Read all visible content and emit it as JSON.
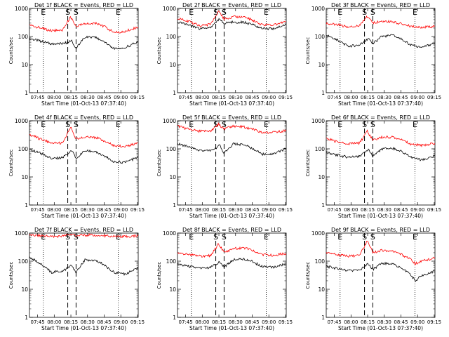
{
  "chart_data": {
    "type": "line",
    "title_suffix": "BLACK = Events, RED = LLD",
    "ylabel": "Counts/sec",
    "xlabel": "Start Time (01-Oct-13 07:37:40)",
    "x_tick_labels": [
      "07:45",
      "08:00",
      "08:15",
      "08:30",
      "08:45",
      "09:00",
      "09:15"
    ],
    "x_ticks_minutes": [
      7.33,
      22.33,
      37.33,
      52.33,
      67.33,
      82.33,
      97.33
    ],
    "xlim_minutes": [
      0,
      98
    ],
    "y_tick_labels": [
      "1",
      "10",
      "100",
      "1000"
    ],
    "ylim": [
      1,
      1000
    ],
    "y_scale": "log",
    "markers": [
      {
        "label": "E",
        "minute": 12.5,
        "style": "dotted"
      },
      {
        "label": "S",
        "minute": 34.5,
        "style": "dashed"
      },
      {
        "label": "S",
        "minute": 42.0,
        "style": "dashed"
      },
      {
        "label": "E",
        "minute": 80.0,
        "style": "dotted"
      }
    ],
    "colors": {
      "events": "#000000",
      "lld": "#ff0000"
    },
    "panels": [
      {
        "detector": "1f",
        "title": "Det 1f",
        "events": [
          {
            "x": 0,
            "y": 85
          },
          {
            "x": 10,
            "y": 68
          },
          {
            "x": 20,
            "y": 55
          },
          {
            "x": 30,
            "y": 55
          },
          {
            "x": 38,
            "y": 70
          },
          {
            "x": 42,
            "y": 38
          },
          {
            "x": 50,
            "y": 95
          },
          {
            "x": 60,
            "y": 90
          },
          {
            "x": 68,
            "y": 65
          },
          {
            "x": 76,
            "y": 38
          },
          {
            "x": 86,
            "y": 40
          },
          {
            "x": 98,
            "y": 65
          }
        ],
        "lld": [
          {
            "x": 0,
            "y": 260
          },
          {
            "x": 10,
            "y": 200
          },
          {
            "x": 20,
            "y": 160
          },
          {
            "x": 30,
            "y": 170
          },
          {
            "x": 37,
            "y": 500
          },
          {
            "x": 42,
            "y": 230
          },
          {
            "x": 50,
            "y": 280
          },
          {
            "x": 60,
            "y": 290
          },
          {
            "x": 68,
            "y": 220
          },
          {
            "x": 76,
            "y": 140
          },
          {
            "x": 86,
            "y": 150
          },
          {
            "x": 98,
            "y": 220
          }
        ]
      },
      {
        "detector": "2f",
        "title": "Det 2f",
        "events": [
          {
            "x": 0,
            "y": 320
          },
          {
            "x": 10,
            "y": 260
          },
          {
            "x": 20,
            "y": 190
          },
          {
            "x": 30,
            "y": 210
          },
          {
            "x": 38,
            "y": 420
          },
          {
            "x": 42,
            "y": 300
          },
          {
            "x": 50,
            "y": 330
          },
          {
            "x": 60,
            "y": 320
          },
          {
            "x": 68,
            "y": 260
          },
          {
            "x": 76,
            "y": 190
          },
          {
            "x": 86,
            "y": 190
          },
          {
            "x": 98,
            "y": 270
          }
        ],
        "lld": [
          {
            "x": 0,
            "y": 450
          },
          {
            "x": 10,
            "y": 350
          },
          {
            "x": 20,
            "y": 240
          },
          {
            "x": 30,
            "y": 270
          },
          {
            "x": 37,
            "y": 800
          },
          {
            "x": 42,
            "y": 420
          },
          {
            "x": 50,
            "y": 500
          },
          {
            "x": 60,
            "y": 500
          },
          {
            "x": 68,
            "y": 380
          },
          {
            "x": 76,
            "y": 260
          },
          {
            "x": 86,
            "y": 260
          },
          {
            "x": 98,
            "y": 340
          }
        ]
      },
      {
        "detector": "3f",
        "title": "Det 3f",
        "events": [
          {
            "x": 0,
            "y": 120
          },
          {
            "x": 10,
            "y": 75
          },
          {
            "x": 20,
            "y": 45
          },
          {
            "x": 30,
            "y": 50
          },
          {
            "x": 38,
            "y": 85
          },
          {
            "x": 42,
            "y": 55
          },
          {
            "x": 50,
            "y": 100
          },
          {
            "x": 60,
            "y": 110
          },
          {
            "x": 68,
            "y": 80
          },
          {
            "x": 76,
            "y": 50
          },
          {
            "x": 86,
            "y": 40
          },
          {
            "x": 98,
            "y": 60
          }
        ],
        "lld": [
          {
            "x": 0,
            "y": 300
          },
          {
            "x": 10,
            "y": 260
          },
          {
            "x": 20,
            "y": 220
          },
          {
            "x": 30,
            "y": 240
          },
          {
            "x": 37,
            "y": 520
          },
          {
            "x": 42,
            "y": 300
          },
          {
            "x": 50,
            "y": 350
          },
          {
            "x": 60,
            "y": 330
          },
          {
            "x": 68,
            "y": 280
          },
          {
            "x": 76,
            "y": 230
          },
          {
            "x": 86,
            "y": 210
          },
          {
            "x": 98,
            "y": 230
          }
        ]
      },
      {
        "detector": "4f",
        "title": "Det 4f",
        "events": [
          {
            "x": 0,
            "y": 95
          },
          {
            "x": 10,
            "y": 70
          },
          {
            "x": 20,
            "y": 45
          },
          {
            "x": 30,
            "y": 48
          },
          {
            "x": 38,
            "y": 90
          },
          {
            "x": 42,
            "y": 45
          },
          {
            "x": 50,
            "y": 85
          },
          {
            "x": 60,
            "y": 80
          },
          {
            "x": 68,
            "y": 55
          },
          {
            "x": 76,
            "y": 35
          },
          {
            "x": 86,
            "y": 33
          },
          {
            "x": 98,
            "y": 50
          }
        ],
        "lld": [
          {
            "x": 0,
            "y": 330
          },
          {
            "x": 10,
            "y": 220
          },
          {
            "x": 20,
            "y": 160
          },
          {
            "x": 30,
            "y": 160
          },
          {
            "x": 37,
            "y": 600
          },
          {
            "x": 42,
            "y": 220
          },
          {
            "x": 50,
            "y": 260
          },
          {
            "x": 60,
            "y": 250
          },
          {
            "x": 68,
            "y": 190
          },
          {
            "x": 76,
            "y": 130
          },
          {
            "x": 86,
            "y": 120
          },
          {
            "x": 98,
            "y": 160
          }
        ]
      },
      {
        "detector": "5f",
        "title": "Det 5f",
        "events": [
          {
            "x": 0,
            "y": 150
          },
          {
            "x": 10,
            "y": 120
          },
          {
            "x": 20,
            "y": 85
          },
          {
            "x": 30,
            "y": 85
          },
          {
            "x": 38,
            "y": 130
          },
          {
            "x": 42,
            "y": 70
          },
          {
            "x": 50,
            "y": 150
          },
          {
            "x": 60,
            "y": 140
          },
          {
            "x": 68,
            "y": 100
          },
          {
            "x": 76,
            "y": 65
          },
          {
            "x": 86,
            "y": 65
          },
          {
            "x": 98,
            "y": 100
          }
        ],
        "lld": [
          {
            "x": 0,
            "y": 650
          },
          {
            "x": 10,
            "y": 500
          },
          {
            "x": 20,
            "y": 420
          },
          {
            "x": 30,
            "y": 440
          },
          {
            "x": 37,
            "y": 750
          },
          {
            "x": 42,
            "y": 500
          },
          {
            "x": 50,
            "y": 650
          },
          {
            "x": 60,
            "y": 600
          },
          {
            "x": 68,
            "y": 500
          },
          {
            "x": 76,
            "y": 380
          },
          {
            "x": 86,
            "y": 380
          },
          {
            "x": 98,
            "y": 450
          }
        ]
      },
      {
        "detector": "6f",
        "title": "Det 6f",
        "events": [
          {
            "x": 0,
            "y": 75
          },
          {
            "x": 10,
            "y": 60
          },
          {
            "x": 20,
            "y": 50
          },
          {
            "x": 30,
            "y": 55
          },
          {
            "x": 38,
            "y": 95
          },
          {
            "x": 42,
            "y": 55
          },
          {
            "x": 50,
            "y": 100
          },
          {
            "x": 60,
            "y": 105
          },
          {
            "x": 68,
            "y": 80
          },
          {
            "x": 76,
            "y": 50
          },
          {
            "x": 86,
            "y": 40
          },
          {
            "x": 98,
            "y": 55
          }
        ],
        "lld": [
          {
            "x": 0,
            "y": 230
          },
          {
            "x": 10,
            "y": 180
          },
          {
            "x": 20,
            "y": 150
          },
          {
            "x": 30,
            "y": 160
          },
          {
            "x": 37,
            "y": 420
          },
          {
            "x": 42,
            "y": 200
          },
          {
            "x": 50,
            "y": 260
          },
          {
            "x": 60,
            "y": 260
          },
          {
            "x": 68,
            "y": 210
          },
          {
            "x": 76,
            "y": 150
          },
          {
            "x": 86,
            "y": 130
          },
          {
            "x": 98,
            "y": 160
          }
        ]
      },
      {
        "detector": "7f",
        "title": "Det 7f",
        "events": [
          {
            "x": 0,
            "y": 140
          },
          {
            "x": 10,
            "y": 80
          },
          {
            "x": 20,
            "y": 40
          },
          {
            "x": 30,
            "y": 45
          },
          {
            "x": 38,
            "y": 70
          },
          {
            "x": 42,
            "y": 40
          },
          {
            "x": 50,
            "y": 110
          },
          {
            "x": 60,
            "y": 110
          },
          {
            "x": 68,
            "y": 70
          },
          {
            "x": 76,
            "y": 40
          },
          {
            "x": 86,
            "y": 35
          },
          {
            "x": 98,
            "y": 55
          }
        ],
        "lld": [
          {
            "x": 0,
            "y": 850
          },
          {
            "x": 10,
            "y": 800
          },
          {
            "x": 20,
            "y": 750
          },
          {
            "x": 30,
            "y": 780
          },
          {
            "x": 37,
            "y": 900
          },
          {
            "x": 42,
            "y": 800
          },
          {
            "x": 50,
            "y": 850
          },
          {
            "x": 60,
            "y": 850
          },
          {
            "x": 68,
            "y": 800
          },
          {
            "x": 76,
            "y": 750
          },
          {
            "x": 86,
            "y": 750
          },
          {
            "x": 98,
            "y": 800
          }
        ]
      },
      {
        "detector": "8f",
        "title": "Det 8f",
        "events": [
          {
            "x": 0,
            "y": 80
          },
          {
            "x": 10,
            "y": 65
          },
          {
            "x": 20,
            "y": 55
          },
          {
            "x": 30,
            "y": 60
          },
          {
            "x": 38,
            "y": 95
          },
          {
            "x": 42,
            "y": 60
          },
          {
            "x": 50,
            "y": 110
          },
          {
            "x": 60,
            "y": 120
          },
          {
            "x": 68,
            "y": 95
          },
          {
            "x": 76,
            "y": 65
          },
          {
            "x": 86,
            "y": 60
          },
          {
            "x": 98,
            "y": 80
          }
        ],
        "lld": [
          {
            "x": 0,
            "y": 200
          },
          {
            "x": 10,
            "y": 170
          },
          {
            "x": 20,
            "y": 150
          },
          {
            "x": 30,
            "y": 160
          },
          {
            "x": 37,
            "y": 420
          },
          {
            "x": 42,
            "y": 200
          },
          {
            "x": 50,
            "y": 280
          },
          {
            "x": 60,
            "y": 300
          },
          {
            "x": 68,
            "y": 240
          },
          {
            "x": 76,
            "y": 170
          },
          {
            "x": 86,
            "y": 160
          },
          {
            "x": 98,
            "y": 190
          }
        ]
      },
      {
        "detector": "9f",
        "title": "Det 9f",
        "events": [
          {
            "x": 0,
            "y": 65
          },
          {
            "x": 10,
            "y": 55
          },
          {
            "x": 20,
            "y": 45
          },
          {
            "x": 30,
            "y": 50
          },
          {
            "x": 38,
            "y": 80
          },
          {
            "x": 42,
            "y": 50
          },
          {
            "x": 50,
            "y": 85
          },
          {
            "x": 60,
            "y": 80
          },
          {
            "x": 68,
            "y": 55
          },
          {
            "x": 76,
            "y": 35
          },
          {
            "x": 80,
            "y": 20
          },
          {
            "x": 86,
            "y": 30
          },
          {
            "x": 98,
            "y": 45
          }
        ],
        "lld": [
          {
            "x": 0,
            "y": 210
          },
          {
            "x": 10,
            "y": 170
          },
          {
            "x": 20,
            "y": 150
          },
          {
            "x": 30,
            "y": 160
          },
          {
            "x": 37,
            "y": 520
          },
          {
            "x": 42,
            "y": 200
          },
          {
            "x": 50,
            "y": 240
          },
          {
            "x": 60,
            "y": 230
          },
          {
            "x": 68,
            "y": 170
          },
          {
            "x": 76,
            "y": 120
          },
          {
            "x": 80,
            "y": 80
          },
          {
            "x": 86,
            "y": 100
          },
          {
            "x": 98,
            "y": 130
          }
        ]
      }
    ]
  }
}
